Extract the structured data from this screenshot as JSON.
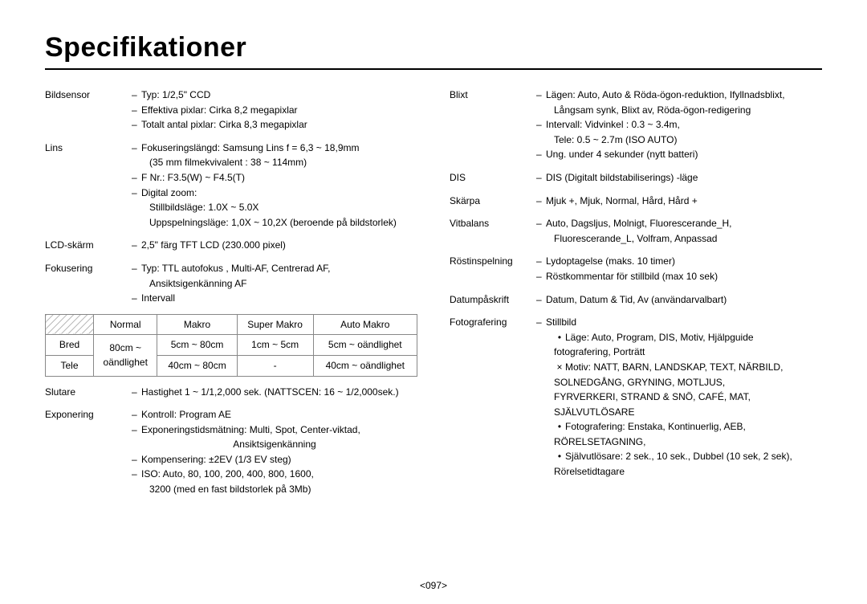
{
  "title": "Specifikationer",
  "page": "<097>",
  "left": {
    "bildsensor": {
      "label": "Bildsensor",
      "items": [
        "Typ: 1/2,5\" CCD",
        "Effektiva pixlar: Cirka 8,2 megapixlar",
        "Totalt antal pixlar: Cirka 8,3 megapixlar"
      ]
    },
    "lins": {
      "label": "Lins",
      "items": [
        "Fokuseringslängd: Samsung Lins f = 6,3 ~ 18,9mm",
        "F Nr.: F3.5(W) ~ F4.5(T)",
        "Digital zoom:"
      ],
      "sub0": "(35 mm filmekvivalent : 38 ~ 114mm)",
      "sub2a": "Stillbildsläge: 1.0X ~ 5.0X",
      "sub2b": "Uppspelningsläge: 1,0X ~ 10,2X (beroende på bildstorlek)"
    },
    "lcd": {
      "label": "LCD-skärm",
      "item": "2,5\" färg TFT LCD (230.000 pixel)"
    },
    "fokusering": {
      "label": "Fokusering",
      "items": [
        "Typ: TTL autofokus , Multi-AF, Centrerad AF,",
        "Intervall"
      ],
      "sub0": "Ansiktsigenkänning AF"
    },
    "focus_table": {
      "cols": [
        "Normal",
        "Makro",
        "Super Makro",
        "Auto Makro"
      ],
      "rows": [
        "Bred",
        "Tele"
      ],
      "cells": [
        [
          "80cm ~",
          "5cm ~ 80cm",
          "1cm ~ 5cm",
          "5cm ~ oändlighet"
        ],
        [
          "oändlighet",
          "40cm ~ 80cm",
          "-",
          "40cm ~ oändlighet"
        ]
      ]
    },
    "slutare": {
      "label": "Slutare",
      "item": "Hastighet 1 ~ 1/1,2,000 sek. (NATTSCEN: 16 ~ 1/2,000sek.)"
    },
    "exponering": {
      "label": "Exponering",
      "items": [
        "Kontroll: Program AE",
        "Exponeringstidsmätning: Multi, Spot, Center-viktad,",
        "Kompensering: ±2EV (1/3 EV steg)",
        "ISO: Auto, 80, 100, 200, 400, 800, 1600,"
      ],
      "sub1": "Ansiktsigenkänning",
      "sub3": "3200 (med en fast bildstorlek på 3Mb)"
    }
  },
  "right": {
    "blixt": {
      "label": "Blixt",
      "items": [
        "Lägen: Auto, Auto & Röda-ögon-reduktion, Ifyllnadsblixt,",
        "Intervall: Vidvinkel : 0.3 ~ 3.4m,",
        "Ung. under 4 sekunder (nytt batteri)"
      ],
      "sub0": "Långsam synk, Blixt av, Röda-ögon-redigering",
      "sub1": "Tele: 0.5 ~ 2.7m (ISO AUTO)"
    },
    "dis": {
      "label": "DIS",
      "item": "DIS (Digitalt bildstabiliserings) -läge"
    },
    "skarpa": {
      "label": "Skärpa",
      "item": "Mjuk +, Mjuk, Normal, Hård, Hård +"
    },
    "vitbalans": {
      "label": "Vitbalans",
      "item": "Auto, Dagsljus, Molnigt, Fluorescerande_H,",
      "sub": "Fluorescerande_L, Volfram, Anpassad"
    },
    "rost": {
      "label": "Röstinspelning",
      "items": [
        "Lydoptagelse (maks. 10 timer)",
        "Röstkommentar för stillbild (max 10 sek)"
      ]
    },
    "datum": {
      "label": "Datumpåskrift",
      "item": "Datum, Datum & Tid, Av (användarvalbart)"
    },
    "foto": {
      "label": "Fotografering",
      "head": "Stillbild",
      "b1": "Läge: Auto, Program, DIS, Motiv, Hjälpguide",
      "b1s": "fotografering, Porträtt",
      "b2": "Motiv: NATT, BARN, LANDSKAP, TEXT, NÄRBILD,",
      "b2s1": "SOLNEDGÅNG, GRYNING, MOTLJUS,",
      "b2s2": "FYRVERKERI, STRAND & SNÖ, CAFÉ, MAT,",
      "b2s3": "SJÄLVUTLÖSARE",
      "b3": "Fotografering: Enstaka, Kontinuerlig, AEB,",
      "b3s": "RÖRELSETAGNING,",
      "b4": "Självutlösare: 2 sek., 10 sek., Dubbel (10 sek, 2 sek),",
      "b4s": "Rörelsetidtagare"
    }
  }
}
